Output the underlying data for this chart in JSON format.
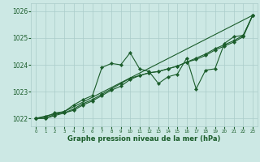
{
  "title": "Graphe pression niveau de la mer (hPa)",
  "bg_color": "#cce8e4",
  "grid_color": "#aaccca",
  "line_color": "#1a5c2a",
  "xlim": [
    -0.5,
    23.5
  ],
  "ylim": [
    1021.7,
    1026.3
  ],
  "yticks": [
    1022,
    1023,
    1024,
    1025,
    1026
  ],
  "xticks": [
    0,
    1,
    2,
    3,
    4,
    5,
    6,
    7,
    8,
    9,
    10,
    11,
    12,
    13,
    14,
    15,
    16,
    17,
    18,
    19,
    20,
    21,
    22,
    23
  ],
  "series1": [
    1022.0,
    1022.05,
    1022.2,
    1022.25,
    1022.5,
    1022.7,
    1022.85,
    1023.9,
    1024.05,
    1024.0,
    1024.45,
    1023.85,
    1023.75,
    1023.3,
    1023.55,
    1023.65,
    1024.25,
    1023.1,
    1023.8,
    1023.85,
    1024.8,
    1025.05,
    1025.1,
    1025.85
  ],
  "series2_x": [
    0,
    3,
    23
  ],
  "series2_y": [
    1022.0,
    1022.25,
    1025.85
  ],
  "series3": [
    1022.0,
    1022.0,
    1022.1,
    1022.2,
    1022.35,
    1022.55,
    1022.7,
    1022.9,
    1023.1,
    1023.3,
    1023.5,
    1023.6,
    1023.7,
    1023.75,
    1023.85,
    1023.95,
    1024.1,
    1024.2,
    1024.35,
    1024.55,
    1024.7,
    1024.85,
    1025.05,
    1025.85
  ],
  "series4": [
    1022.0,
    1022.0,
    1022.15,
    1022.2,
    1022.3,
    1022.5,
    1022.65,
    1022.85,
    1023.05,
    1023.2,
    1023.45,
    1023.6,
    1023.7,
    1023.75,
    1023.85,
    1023.95,
    1024.1,
    1024.25,
    1024.4,
    1024.6,
    1024.75,
    1024.9,
    1025.1,
    1025.85
  ],
  "lw": 0.8,
  "ms": 2.2
}
